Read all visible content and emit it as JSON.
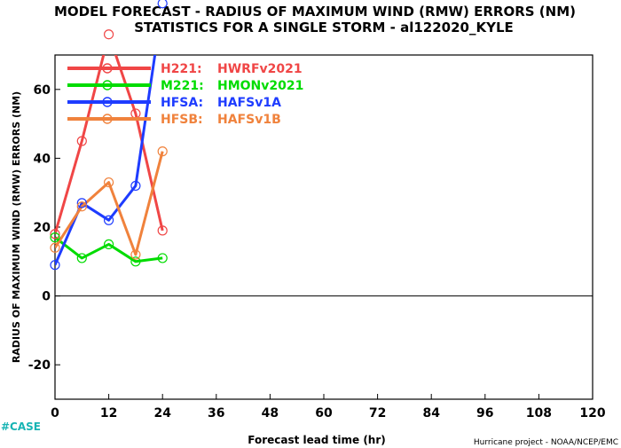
{
  "chart_data": {
    "type": "line",
    "title_line1": "MODEL FORECAST - RADIUS OF MAXIMUM WIND (RMW) ERRORS (NM)",
    "title_line2": "STATISTICS FOR A SINGLE STORM - al122020_KYLE",
    "xlabel": "Forecast lead time (hr)",
    "ylabel": "RADIUS OF MAXIMUM WIND (RMW) ERRORS (NM)",
    "credit": "Hurricane project - NOAA/NCEP/EMC",
    "case_label": "#CASE",
    "xlim": [
      0,
      120
    ],
    "ylim": [
      -30,
      70
    ],
    "x_ticks": [
      0,
      12,
      24,
      36,
      48,
      60,
      72,
      84,
      96,
      108,
      120
    ],
    "y_ticks": [
      -20,
      0,
      20,
      40,
      60
    ],
    "zero_line": 0,
    "series": [
      {
        "name": "H221:",
        "desc": "HWRFv2021",
        "color": "#f04646",
        "x": [
          0,
          6,
          12,
          18,
          24
        ],
        "y": [
          18,
          45,
          76,
          53,
          19
        ]
      },
      {
        "name": "M221:",
        "desc": "HMONv2021",
        "color": "#00dc00",
        "x": [
          0,
          6,
          12,
          18,
          24
        ],
        "y": [
          17,
          11,
          15,
          10,
          11
        ]
      },
      {
        "name": "HFSA:",
        "desc": "HAFSv1A",
        "color": "#1e3cff",
        "x": [
          0,
          6,
          12,
          18,
          24
        ],
        "y": [
          9,
          27,
          22,
          32,
          85
        ]
      },
      {
        "name": "HFSB:",
        "desc": "HAFSv1B",
        "color": "#f0823c",
        "x": [
          0,
          6,
          12,
          18,
          24
        ],
        "y": [
          14,
          26,
          33,
          12,
          42
        ]
      }
    ],
    "grid": false,
    "legend_position": "top-left"
  }
}
